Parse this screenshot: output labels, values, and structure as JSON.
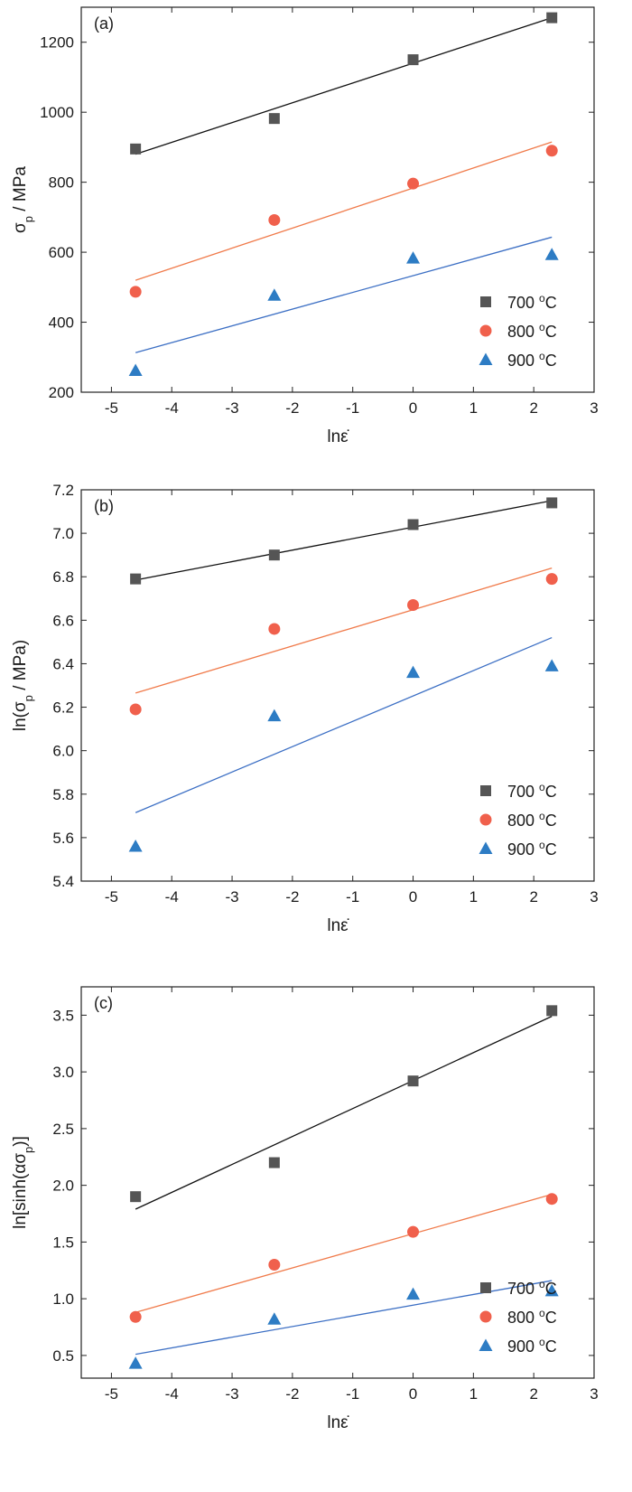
{
  "colors": {
    "s700": "#555555",
    "s800": "#f0604c",
    "s900": "#2d7cc4",
    "fit700": "#111111",
    "fit800": "#f07a4a",
    "fit900": "#3c6fc4"
  },
  "legend": [
    "700 °C",
    "800 °C",
    "900 °C"
  ],
  "chart_data": [
    {
      "type": "scatter",
      "panel_label": "(a)",
      "xlabel": "lnε̇",
      "ylabel": "σp / MPa",
      "xlim": [
        -5.5,
        3
      ],
      "ylim": [
        200,
        1300
      ],
      "xticks": [
        -5,
        -4,
        -3,
        -2,
        -1,
        0,
        1,
        2,
        3
      ],
      "yticks": [
        200,
        400,
        600,
        800,
        1000,
        1200
      ],
      "ytick_decimals": 0,
      "legend_position": "bottom-right",
      "x": [
        -4.6,
        -2.3,
        0,
        2.3
      ],
      "series": [
        {
          "name": "700 °C",
          "marker": "square",
          "values": [
            895,
            982,
            1150,
            1270
          ],
          "fit": [
            [
              -4.6,
              880
            ],
            [
              2.3,
              1270
            ]
          ]
        },
        {
          "name": "800 °C",
          "marker": "circle",
          "values": [
            487,
            692,
            796,
            890
          ],
          "fit": [
            [
              -4.6,
              520
            ],
            [
              2.3,
              915
            ]
          ]
        },
        {
          "name": "900 °C",
          "marker": "triangle",
          "values": [
            262,
            477,
            583,
            593
          ],
          "fit": [
            [
              -4.6,
              313
            ],
            [
              2.3,
              643
            ]
          ]
        }
      ]
    },
    {
      "type": "scatter",
      "panel_label": "(b)",
      "xlabel": "lnε̇",
      "ylabel": "ln(σp / MPa)",
      "xlim": [
        -5.5,
        3
      ],
      "ylim": [
        5.4,
        7.2
      ],
      "xticks": [
        -5,
        -4,
        -3,
        -2,
        -1,
        0,
        1,
        2,
        3
      ],
      "yticks": [
        5.4,
        5.6,
        5.8,
        6.0,
        6.2,
        6.4,
        6.6,
        6.8,
        7.0,
        7.2
      ],
      "ytick_decimals": 1,
      "legend_position": "bottom-right",
      "x": [
        -4.6,
        -2.3,
        0,
        2.3
      ],
      "series": [
        {
          "name": "700 °C",
          "marker": "square",
          "values": [
            6.79,
            6.9,
            7.04,
            7.14
          ],
          "fit": [
            [
              -4.6,
              6.785
            ],
            [
              2.3,
              7.15
            ]
          ]
        },
        {
          "name": "800 °C",
          "marker": "circle",
          "values": [
            6.19,
            6.56,
            6.67,
            6.79
          ],
          "fit": [
            [
              -4.6,
              6.265
            ],
            [
              2.3,
              6.84
            ]
          ]
        },
        {
          "name": "900 °C",
          "marker": "triangle",
          "values": [
            5.56,
            6.16,
            6.36,
            6.39
          ],
          "fit": [
            [
              -4.6,
              5.715
            ],
            [
              2.3,
              6.52
            ]
          ]
        }
      ]
    },
    {
      "type": "scatter",
      "panel_label": "(c)",
      "xlabel": "lnε̇",
      "ylabel": "ln[sinh(ασp)]",
      "xlim": [
        -5.5,
        3
      ],
      "ylim": [
        0.3,
        3.75
      ],
      "xticks": [
        -5,
        -4,
        -3,
        -2,
        -1,
        0,
        1,
        2,
        3
      ],
      "yticks": [
        0.5,
        1.0,
        1.5,
        2.0,
        2.5,
        3.0,
        3.5
      ],
      "ytick_decimals": 1,
      "legend_position": "bottom-right",
      "x": [
        -4.6,
        -2.3,
        0,
        2.3
      ],
      "series": [
        {
          "name": "700 °C",
          "marker": "square",
          "values": [
            1.9,
            2.2,
            2.92,
            3.54
          ],
          "fit": [
            [
              -4.6,
              1.79
            ],
            [
              2.3,
              3.49
            ]
          ]
        },
        {
          "name": "800 °C",
          "marker": "circle",
          "values": [
            0.84,
            1.3,
            1.59,
            1.88
          ],
          "fit": [
            [
              -4.6,
              0.88
            ],
            [
              2.3,
              1.92
            ]
          ]
        },
        {
          "name": "900 °C",
          "marker": "triangle",
          "values": [
            0.43,
            0.82,
            1.04,
            1.07
          ],
          "fit": [
            [
              -4.6,
              0.51
            ],
            [
              2.3,
              1.16
            ]
          ]
        }
      ]
    }
  ]
}
